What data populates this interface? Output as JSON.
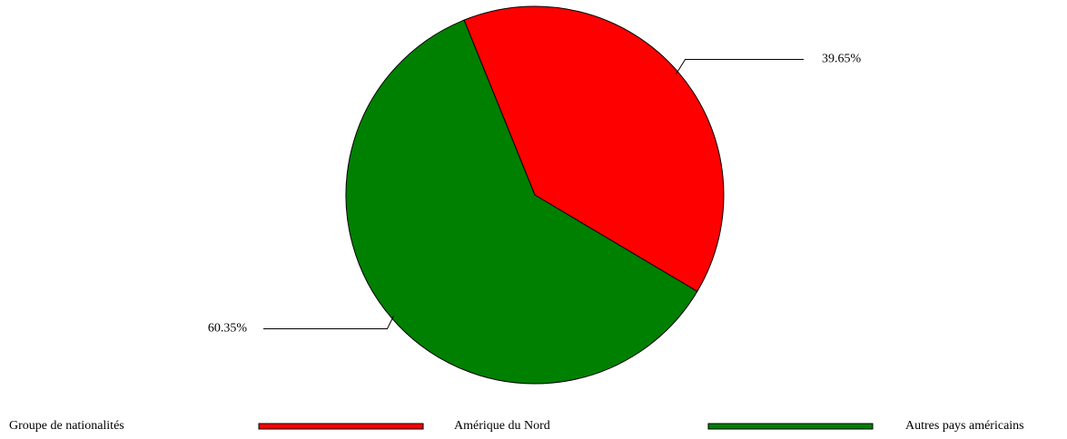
{
  "chart_data": {
    "type": "pie",
    "categories": [
      "Amérique du Nord",
      "Autres pays américains"
    ],
    "values": [
      39.65,
      60.35
    ],
    "value_labels": [
      "39.65%",
      "60.35%"
    ],
    "colors": [
      "#ff0000",
      "#008000"
    ],
    "legend_title": "Groupe de nationalités",
    "legend": "bottom"
  }
}
